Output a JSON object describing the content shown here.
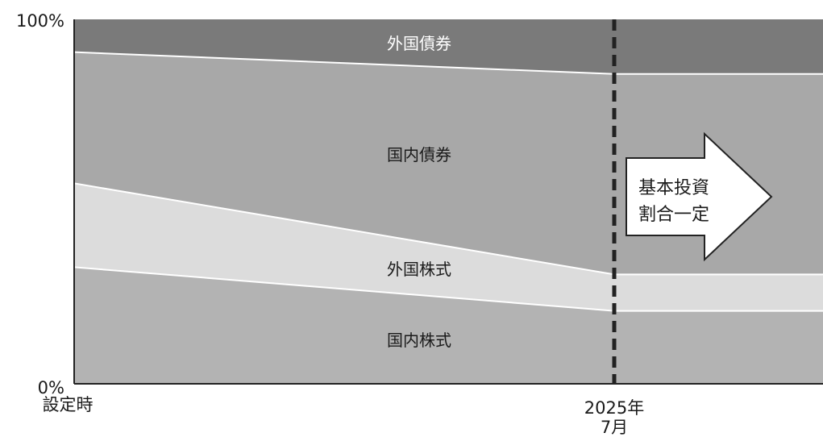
{
  "chart_data": {
    "type": "area",
    "title": "",
    "xlabel": "",
    "ylabel": "",
    "stacked": true,
    "ylim": [
      0,
      100
    ],
    "y_ticks": [
      "0%",
      "100%"
    ],
    "x": [
      "設定時",
      "2025年7月",
      "end"
    ],
    "x_ticks": [
      {
        "label": "設定時",
        "lines": [
          "設定時"
        ]
      },
      {
        "label": "2025年7月",
        "lines": [
          "2025年",
          "7月"
        ]
      }
    ],
    "series": [
      {
        "name": "国内株式",
        "values": [
          32,
          20,
          20
        ],
        "color": "#b3b3b3",
        "label_color": "#1a1a1a"
      },
      {
        "name": "外国株式",
        "values": [
          23,
          10,
          10
        ],
        "color": "#dcdcdc",
        "label_color": "#1a1a1a"
      },
      {
        "name": "国内債券",
        "values": [
          36,
          55,
          55
        ],
        "color": "#a8a8a8",
        "label_color": "#1a1a1a"
      },
      {
        "name": "外国債券",
        "values": [
          9,
          15,
          15
        ],
        "color": "#7a7a7a",
        "label_color": "#ffffff"
      }
    ],
    "region_labels": [
      "外国債券",
      "国内債券",
      "外国株式",
      "国内株式"
    ],
    "annotation": {
      "lines": [
        "基本投資",
        "割合一定"
      ]
    },
    "reference_line": {
      "x": "2025年7月",
      "style": "dashed"
    },
    "grid": false
  }
}
